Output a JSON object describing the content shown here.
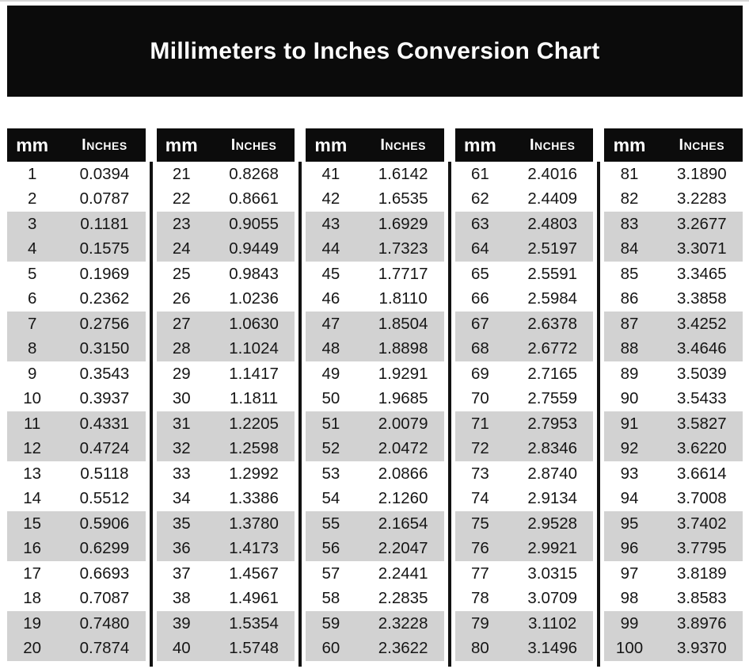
{
  "title": "Millimeters to Inches Conversion Chart",
  "colors": {
    "header_bg": "#0b0b0b",
    "header_text": "#ffffff",
    "row_alt_bg": "#d2d2d2",
    "row_text": "#161616",
    "divider": "#121212",
    "page_bg": "#ffffff"
  },
  "chart_data": {
    "type": "table",
    "title": "Millimeters to Inches Conversion Chart",
    "columns": [
      "mm",
      "Inches"
    ],
    "layout": "5 side-by-side sub-tables of 20 rows, alternating pairs of rows shaded gray",
    "tables": [
      {
        "rows": [
          [
            1,
            "0.0394"
          ],
          [
            2,
            "0.0787"
          ],
          [
            3,
            "0.1181"
          ],
          [
            4,
            "0.1575"
          ],
          [
            5,
            "0.1969"
          ],
          [
            6,
            "0.2362"
          ],
          [
            7,
            "0.2756"
          ],
          [
            8,
            "0.3150"
          ],
          [
            9,
            "0.3543"
          ],
          [
            10,
            "0.3937"
          ],
          [
            11,
            "0.4331"
          ],
          [
            12,
            "0.4724"
          ],
          [
            13,
            "0.5118"
          ],
          [
            14,
            "0.5512"
          ],
          [
            15,
            "0.5906"
          ],
          [
            16,
            "0.6299"
          ],
          [
            17,
            "0.6693"
          ],
          [
            18,
            "0.7087"
          ],
          [
            19,
            "0.7480"
          ],
          [
            20,
            "0.7874"
          ]
        ]
      },
      {
        "rows": [
          [
            21,
            "0.8268"
          ],
          [
            22,
            "0.8661"
          ],
          [
            23,
            "0.9055"
          ],
          [
            24,
            "0.9449"
          ],
          [
            25,
            "0.9843"
          ],
          [
            26,
            "1.0236"
          ],
          [
            27,
            "1.0630"
          ],
          [
            28,
            "1.1024"
          ],
          [
            29,
            "1.1417"
          ],
          [
            30,
            "1.1811"
          ],
          [
            31,
            "1.2205"
          ],
          [
            32,
            "1.2598"
          ],
          [
            33,
            "1.2992"
          ],
          [
            34,
            "1.3386"
          ],
          [
            35,
            "1.3780"
          ],
          [
            36,
            "1.4173"
          ],
          [
            37,
            "1.4567"
          ],
          [
            38,
            "1.4961"
          ],
          [
            39,
            "1.5354"
          ],
          [
            40,
            "1.5748"
          ]
        ]
      },
      {
        "rows": [
          [
            41,
            "1.6142"
          ],
          [
            42,
            "1.6535"
          ],
          [
            43,
            "1.6929"
          ],
          [
            44,
            "1.7323"
          ],
          [
            45,
            "1.7717"
          ],
          [
            46,
            "1.8110"
          ],
          [
            47,
            "1.8504"
          ],
          [
            48,
            "1.8898"
          ],
          [
            49,
            "1.9291"
          ],
          [
            50,
            "1.9685"
          ],
          [
            51,
            "2.0079"
          ],
          [
            52,
            "2.0472"
          ],
          [
            53,
            "2.0866"
          ],
          [
            54,
            "2.1260"
          ],
          [
            55,
            "2.1654"
          ],
          [
            56,
            "2.2047"
          ],
          [
            57,
            "2.2441"
          ],
          [
            58,
            "2.2835"
          ],
          [
            59,
            "2.3228"
          ],
          [
            60,
            "2.3622"
          ]
        ]
      },
      {
        "rows": [
          [
            61,
            "2.4016"
          ],
          [
            62,
            "2.4409"
          ],
          [
            63,
            "2.4803"
          ],
          [
            64,
            "2.5197"
          ],
          [
            65,
            "2.5591"
          ],
          [
            66,
            "2.5984"
          ],
          [
            67,
            "2.6378"
          ],
          [
            68,
            "2.6772"
          ],
          [
            69,
            "2.7165"
          ],
          [
            70,
            "2.7559"
          ],
          [
            71,
            "2.7953"
          ],
          [
            72,
            "2.8346"
          ],
          [
            73,
            "2.8740"
          ],
          [
            74,
            "2.9134"
          ],
          [
            75,
            "2.9528"
          ],
          [
            76,
            "2.9921"
          ],
          [
            77,
            "3.0315"
          ],
          [
            78,
            "3.0709"
          ],
          [
            79,
            "3.1102"
          ],
          [
            80,
            "3.1496"
          ]
        ]
      },
      {
        "rows": [
          [
            81,
            "3.1890"
          ],
          [
            82,
            "3.2283"
          ],
          [
            83,
            "3.2677"
          ],
          [
            84,
            "3.3071"
          ],
          [
            85,
            "3.3465"
          ],
          [
            86,
            "3.3858"
          ],
          [
            87,
            "3.4252"
          ],
          [
            88,
            "3.4646"
          ],
          [
            89,
            "3.5039"
          ],
          [
            90,
            "3.5433"
          ],
          [
            91,
            "3.5827"
          ],
          [
            92,
            "3.6220"
          ],
          [
            93,
            "3.6614"
          ],
          [
            94,
            "3.7008"
          ],
          [
            95,
            "3.7402"
          ],
          [
            96,
            "3.7795"
          ],
          [
            97,
            "3.8189"
          ],
          [
            98,
            "3.8583"
          ],
          [
            99,
            "3.8976"
          ],
          [
            100,
            "3.9370"
          ]
        ]
      }
    ]
  }
}
